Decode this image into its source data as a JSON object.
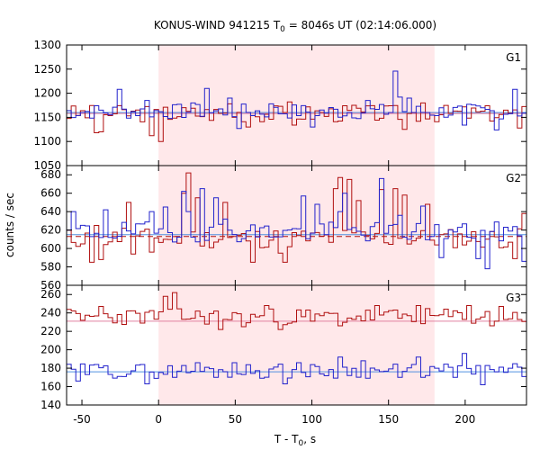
{
  "chart_data": {
    "type": "line",
    "title": "KONUS-WIND 941215 T",
    "title_sub": "0",
    "title_tail": " = 8046s UT (02:14:06.000)",
    "xlabel_main": "T - T",
    "xlabel_sub": "0",
    "xlabel_tail": ", s",
    "ylabel": "counts / sec",
    "xlim": [
      -60,
      240
    ],
    "x_ticks": [
      -50,
      0,
      50,
      100,
      150,
      200
    ],
    "x_tick_labels": [
      "-50",
      "0",
      "50",
      "100",
      "150",
      "200"
    ],
    "interval": [
      0,
      180
    ],
    "colors": {
      "red": "#b01010",
      "blue": "#2222cc",
      "red_bg": "#e080a0",
      "blue_bg": "#5090e0",
      "shade": "#ffe8ea"
    },
    "panels": [
      {
        "name": "G1",
        "ylim": [
          1050,
          1300
        ],
        "y_ticks": [
          1050,
          1100,
          1150,
          1200,
          1250,
          1300
        ],
        "y_tick_labels": [
          "1050",
          "1100",
          "1150",
          "1200",
          "1250",
          "1300"
        ],
        "background": {
          "red": 1158,
          "blue": 1160
        },
        "series": [
          {
            "color": "red",
            "base": 1158,
            "amp": 18,
            "seed": 3,
            "spikes": [
              [
                -42,
                1118
              ],
              [
                -38,
                1120
              ],
              [
                -6,
                1112
              ],
              [
                0,
                1100
              ],
              [
                44,
                1178
              ],
              [
                58,
                1130
              ],
              [
                85,
                1182
              ],
              [
                88,
                1134
              ],
              [
                125,
                1175
              ],
              [
                160,
                1125
              ],
              [
                172,
                1180
              ],
              [
                234,
                1128
              ]
            ]
          },
          {
            "color": "blue",
            "base": 1162,
            "amp": 16,
            "seed": 7,
            "spikes": [
              [
                -10,
                1185
              ],
              [
                -28,
                1208
              ],
              [
                20,
                1180
              ],
              [
                31,
                1210
              ],
              [
                45,
                1190
              ],
              [
                52,
                1127
              ],
              [
                72,
                1178
              ],
              [
                100,
                1130
              ],
              [
                135,
                1185
              ],
              [
                153,
                1246
              ],
              [
                157,
                1192
              ],
              [
                162,
                1190
              ],
              [
                199,
                1134
              ],
              [
                218,
                1124
              ],
              [
                231,
                1208
              ]
            ]
          }
        ]
      },
      {
        "name": "G2",
        "ylim": [
          560,
          690
        ],
        "y_ticks": [
          560,
          580,
          600,
          620,
          640,
          660,
          680
        ],
        "y_tick_labels": [
          "560",
          "580",
          "600",
          "620",
          "640",
          "660",
          "680"
        ],
        "background": {
          "red": 613,
          "blue": 615
        },
        "series": [
          {
            "color": "red",
            "base": 611,
            "amp": 11,
            "seed": 11,
            "spikes": [
              [
                -45,
                585
              ],
              [
                -38,
                588
              ],
              [
                -24,
                622
              ],
              [
                -42,
                625
              ],
              [
                -18,
                594
              ],
              [
                -5,
                596
              ],
              [
                16,
                660
              ],
              [
                19,
                682
              ],
              [
                25,
                655
              ],
              [
                -22,
                650
              ],
              [
                42,
                650
              ],
              [
                61,
                585
              ],
              [
                78,
                595
              ],
              [
                82,
                585
              ],
              [
                114,
                665
              ],
              [
                118,
                677
              ],
              [
                122,
                675
              ],
              [
                130,
                652
              ],
              [
                144,
                664
              ],
              [
                154,
                665
              ],
              [
                158,
                658
              ],
              [
                174,
                648
              ],
              [
                230,
                589
              ],
              [
                238,
                638
              ]
            ]
          },
          {
            "color": "blue",
            "base": 618,
            "amp": 11,
            "seed": 19,
            "spikes": [
              [
                -56,
                640
              ],
              [
                -35,
                642
              ],
              [
                -6,
                640
              ],
              [
                2,
                645
              ],
              [
                14,
                662
              ],
              [
                19,
                640
              ],
              [
                26,
                665
              ],
              [
                37,
                655
              ],
              [
                43,
                632
              ],
              [
                92,
                657
              ],
              [
                103,
                648
              ],
              [
                116,
                640
              ],
              [
                121,
                660
              ],
              [
                144,
                676
              ],
              [
                156,
                636
              ],
              [
                170,
                646
              ],
              [
                183,
                590
              ],
              [
                206,
                589
              ],
              [
                214,
                578
              ],
              [
                236,
                586
              ]
            ]
          }
        ]
      },
      {
        "name": "G3",
        "ylim": [
          140,
          270
        ],
        "y_ticks": [
          140,
          160,
          180,
          200,
          220,
          240,
          260
        ],
        "y_tick_labels": [
          "140",
          "160",
          "180",
          "200",
          "220",
          "240",
          "260"
        ],
        "background": {
          "red": 231,
          "blue": 176
        },
        "series": [
          {
            "color": "red",
            "base": 236,
            "amp": 9,
            "seed": 23,
            "spikes": [
              [
                -50,
                232
              ],
              [
                -40,
                247
              ],
              [
                4,
                258
              ],
              [
                10,
                262
              ],
              [
                40,
                222
              ],
              [
                54,
                225
              ],
              [
                70,
                248
              ],
              [
                79,
                222
              ],
              [
                100,
                231
              ],
              [
                118,
                226
              ],
              [
                140,
                248
              ],
              [
                167,
                248
              ],
              [
                200,
                248
              ],
              [
                216,
                226
              ],
              [
                222,
                247
              ]
            ]
          },
          {
            "color": "blue",
            "base": 177,
            "amp": 8,
            "seed": 29,
            "spikes": [
              [
                -55,
                166
              ],
              [
                -42,
                184
              ],
              [
                -10,
                163
              ],
              [
                23,
                186
              ],
              [
                48,
                186
              ],
              [
                80,
                163
              ],
              [
                90,
                186
              ],
              [
                116,
                192
              ],
              [
                131,
                188
              ],
              [
                155,
                170
              ],
              [
                167,
                192
              ],
              [
                197,
                196
              ],
              [
                210,
                162
              ],
              [
                227,
                180
              ]
            ]
          }
        ]
      }
    ]
  }
}
